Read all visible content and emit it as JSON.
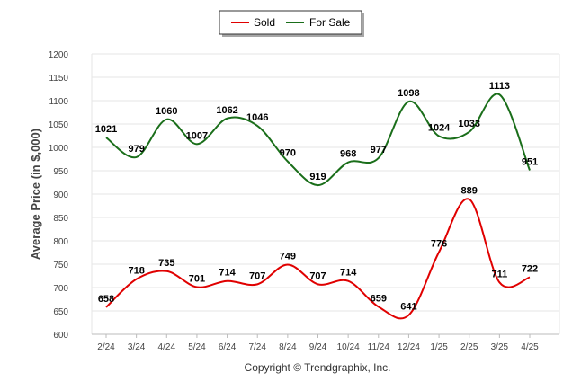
{
  "chart_data": {
    "type": "line",
    "categories": [
      "2/24",
      "3/24",
      "4/24",
      "5/24",
      "6/24",
      "7/24",
      "8/24",
      "9/24",
      "10/24",
      "11/24",
      "12/24",
      "1/25",
      "2/25",
      "3/25",
      "4/25"
    ],
    "series": [
      {
        "name": "Sold",
        "color": "#e00000",
        "values": [
          658,
          718,
          735,
          701,
          714,
          707,
          749,
          707,
          714,
          659,
          641,
          776,
          889,
          711,
          722
        ]
      },
      {
        "name": "For Sale",
        "color": "#1a6e1a",
        "values": [
          1021,
          979,
          1060,
          1007,
          1062,
          1046,
          970,
          919,
          968,
          977,
          1098,
          1024,
          1033,
          1113,
          951
        ]
      }
    ],
    "ylabel": "Average Price (in $,000)",
    "ylim": [
      600,
      1200
    ],
    "yticks": [
      600,
      650,
      700,
      750,
      800,
      850,
      900,
      950,
      1000,
      1050,
      1100,
      1150,
      1200
    ],
    "grid": true,
    "legend": "top-center"
  },
  "footer": "Copyright © Trendgraphix, Inc."
}
